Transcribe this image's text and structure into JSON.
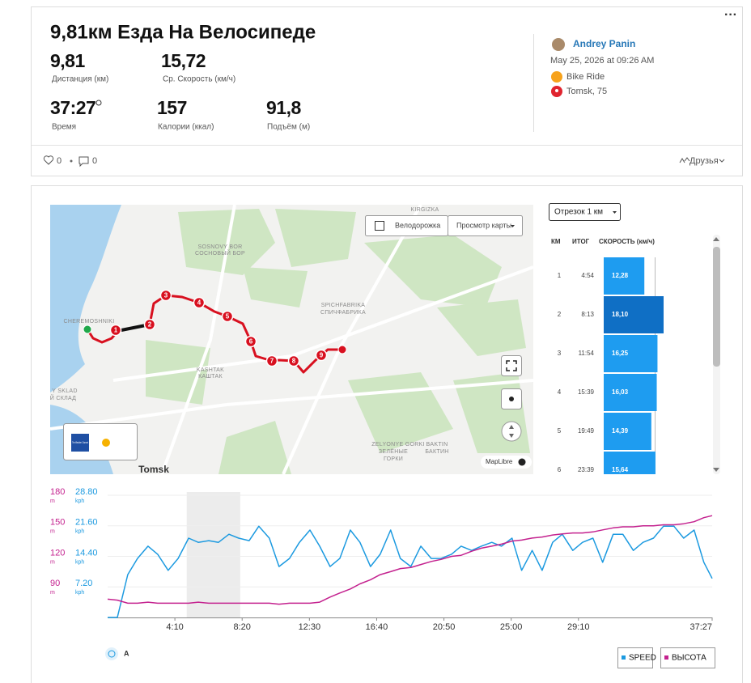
{
  "header": {
    "title": "9,81км Езда На Велосипеде",
    "stats": [
      {
        "value": "9,81",
        "label": "Дистанция (км)"
      },
      {
        "value": "15,72",
        "label": "Ср. Скорость (км/ч)"
      },
      {
        "value": "37:27",
        "label": "Время"
      },
      {
        "value": "157",
        "label": "Калории (ккал)"
      },
      {
        "value": "91,8",
        "label": "Подъём (м)"
      }
    ]
  },
  "athlete": {
    "name": "Andrey Panin",
    "date": "May 25, 2026 at 09:26 AM",
    "activity": "Bike Ride",
    "location": "Tomsk, 75"
  },
  "social": {
    "kudos": 0,
    "comments": 0,
    "visibility": "Друзья"
  },
  "map": {
    "labels": [
      "KIRGIZKA",
      "SOSNOVY BOR",
      "СОСНОВЫЙ БОР",
      "CHEREMOSHNIKI",
      "SPICHFABRIKA",
      "СПИЧФАБРИКА",
      "KASHTAK",
      "КАШТАК",
      "ZELYONYE GORKI",
      "ЗЕЛЁНЫЕ",
      "ГОРКИ",
      "BAKTIN",
      "БАКТИН",
      "Y SKLAD",
      "Й СКЛАД",
      "Tomsk"
    ],
    "markers": [
      1,
      2,
      3,
      4,
      5,
      6,
      7,
      8,
      9
    ],
    "buttons": [
      "Велодорожка",
      "Просмотр карты"
    ],
    "attribution": "MapLibre",
    "weather": "The Weather Channel"
  },
  "splits": {
    "dropdown": "Отрезок 1 км",
    "headers": [
      "КМ",
      "ИТОГ",
      "СКОРОСТЬ (км/ч)"
    ],
    "km": [
      1,
      2,
      3,
      4,
      5,
      6
    ],
    "totals": [
      "4:54",
      "8:13",
      "11:54",
      "15:39",
      "19:49",
      "23:39"
    ],
    "values": [
      12.28,
      18.1,
      16.25,
      16.03,
      14.39,
      15.64
    ],
    "value_labels": [
      "12,28",
      "18,10",
      "16,25",
      "16,03",
      "14,39",
      "15,64"
    ],
    "selected": 1
  },
  "chart_toggle": "A",
  "chart_data": {
    "type": "line",
    "x": [
      0,
      36,
      75,
      111,
      150,
      186,
      225,
      262,
      301,
      337,
      376,
      412,
      451,
      487,
      526,
      562,
      601,
      637,
      676,
      713,
      752,
      788,
      827,
      863,
      902,
      938,
      977,
      1013,
      1052,
      1088,
      1127,
      1164,
      1203,
      1239,
      1278,
      1314,
      1353,
      1389,
      1428,
      1464,
      1503,
      1539,
      1578,
      1615,
      1654,
      1690,
      1729,
      1765,
      1804,
      1840,
      1879,
      1915,
      1954,
      1990,
      2029,
      2066,
      2105,
      2141,
      2180,
      2216,
      2247
    ],
    "series": [
      {
        "name": "SPEED",
        "color": "#1c9ae0",
        "axis": "y2",
        "values": [
          0,
          0,
          10.1,
          13.9,
          16.8,
          14.9,
          11.1,
          13.9,
          18.7,
          17.7,
          18.1,
          17.7,
          19.6,
          18.7,
          18.1,
          21.5,
          18.7,
          12.0,
          13.9,
          17.7,
          20.6,
          16.8,
          12.0,
          13.9,
          20.6,
          17.7,
          12.0,
          14.9,
          20.6,
          13.9,
          12.0,
          16.8,
          13.9,
          13.9,
          14.9,
          16.8,
          15.8,
          16.8,
          17.7,
          16.8,
          18.7,
          11.1,
          15.8,
          11.1,
          17.7,
          19.6,
          15.8,
          17.7,
          18.7,
          13.0,
          19.6,
          19.6,
          15.8,
          17.7,
          18.7,
          21.5,
          21.5,
          18.7,
          20.6,
          13.0,
          9.2
        ]
      },
      {
        "name": "ВЫСОТА",
        "color": "#c4228f",
        "values": [
          78,
          77,
          74,
          74,
          75,
          74,
          74,
          74,
          74,
          75,
          74,
          74,
          74,
          74,
          74,
          74,
          74,
          73,
          74,
          74,
          74,
          75,
          80,
          84,
          88,
          93,
          97,
          102,
          105,
          108,
          109,
          112,
          115,
          117,
          120,
          121,
          125,
          128,
          130,
          132,
          135,
          136,
          138,
          139,
          141,
          142,
          143,
          143,
          144,
          146,
          148,
          149,
          149,
          150,
          150,
          151,
          151,
          152,
          154,
          158,
          160
        ]
      }
    ],
    "xlim": [
      0,
      2247
    ],
    "xticks": [
      {
        "value": 250,
        "label": "4:10"
      },
      {
        "value": 500,
        "label": "8:20"
      },
      {
        "value": 750,
        "label": "12:30"
      },
      {
        "value": 1000,
        "label": "16:40"
      },
      {
        "value": 1250,
        "label": "20:50"
      },
      {
        "value": 1500,
        "label": "25:00"
      },
      {
        "value": 1750,
        "label": "29:10"
      },
      {
        "value": 2247,
        "label": "37:27"
      }
    ],
    "ylim": [
      60,
      180
    ],
    "yticks": [
      90,
      120,
      150,
      180
    ],
    "y_unit": "m",
    "y2lim": [
      0,
      28.8
    ],
    "y2ticks": [
      {
        "value": 7.2,
        "label": "7.20"
      },
      {
        "value": 14.4,
        "label": "14.40"
      },
      {
        "value": 21.6,
        "label": "21.60"
      },
      {
        "value": 28.8,
        "label": "28.80"
      }
    ],
    "y2_unit": "kph",
    "grid": true
  }
}
